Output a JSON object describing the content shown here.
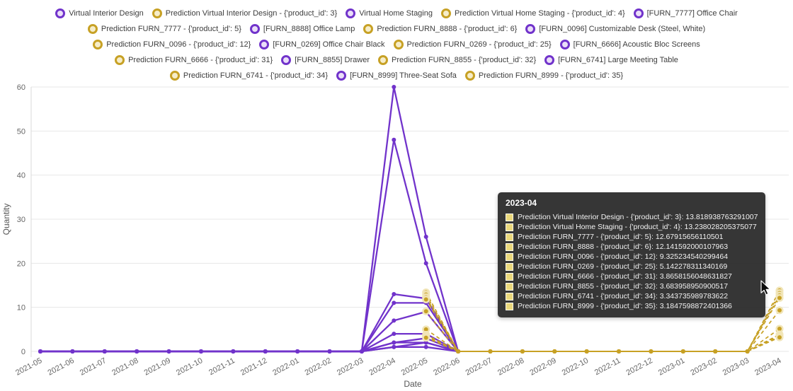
{
  "chart": {
    "ylabel": "Quantity",
    "xlabel": "Date",
    "y_ticks": [
      0,
      10,
      20,
      30,
      40,
      50,
      60
    ],
    "colors": {
      "actual": "#7133cb",
      "prediction": "#c7a125",
      "actual_fill": "#eadef8",
      "prediction_fill": "#f6edc9",
      "prediction_halo": "#f1e5b8",
      "grid": "#e7e7e7",
      "axis_line": "#d9d9d9",
      "axis_text": "#666666"
    }
  },
  "legend": {
    "row_counts": [
      5,
      4,
      4,
      4,
      3
    ]
  },
  "tooltip": {
    "title": "2023-04",
    "rows": [
      {
        "label": "Prediction Virtual Interior Design - {'product_id': 3}",
        "value": "13.818938763291007"
      },
      {
        "label": "Prediction Virtual Home Staging - {'product_id': 4}",
        "value": "13.238028205375077"
      },
      {
        "label": "Prediction FURN_7777 - {'product_id': 5}",
        "value": "12.67915656110501"
      },
      {
        "label": "Prediction FURN_8888 - {'product_id': 6}",
        "value": "12.141592000107963"
      },
      {
        "label": "Prediction FURN_0096 - {'product_id': 12}",
        "value": "9.325234540299464"
      },
      {
        "label": "Prediction FURN_0269 - {'product_id': 25}",
        "value": "5.142278311340169"
      },
      {
        "label": "Prediction FURN_6666 - {'product_id': 31}",
        "value": "3.8658156048631827"
      },
      {
        "label": "Prediction FURN_8855 - {'product_id': 32}",
        "value": "3.683958950900517"
      },
      {
        "label": "Prediction FURN_6741 - {'product_id': 34}",
        "value": "3.343735989783622"
      },
      {
        "label": "Prediction FURN_8999 - {'product_id': 35}",
        "value": "3.1847598872401366"
      }
    ]
  },
  "chart_data": {
    "type": "line",
    "title": "",
    "xlabel": "Date",
    "ylabel": "Quantity",
    "ylim": [
      0,
      60
    ],
    "x": [
      "2021-05",
      "2021-06",
      "2021-07",
      "2021-08",
      "2021-09",
      "2021-10",
      "2021-11",
      "2021-12",
      "2022-01",
      "2022-02",
      "2022-03",
      "2022-04",
      "2022-05",
      "2022-06",
      "2022-07",
      "2022-08",
      "2022-09",
      "2022-10",
      "2022-11",
      "2022-12",
      "2023-01",
      "2023-02",
      "2023-03",
      "2023-04"
    ],
    "series": [
      {
        "name": "Virtual Interior Design",
        "kind": "actual",
        "values": [
          0,
          0,
          0,
          0,
          0,
          0,
          0,
          0,
          0,
          0,
          0,
          60,
          26,
          0,
          null,
          null,
          null,
          null,
          null,
          null,
          null,
          null,
          null,
          null
        ]
      },
      {
        "name": "Prediction Virtual Interior Design - {'product_id': 3}",
        "kind": "prediction",
        "values": [
          null,
          null,
          null,
          null,
          null,
          null,
          null,
          null,
          null,
          null,
          null,
          null,
          13.4,
          0,
          0,
          0,
          0,
          0,
          0,
          0,
          0,
          0,
          0,
          13.818938763291007
        ]
      },
      {
        "name": "Virtual Home Staging",
        "kind": "actual",
        "values": [
          0,
          0,
          0,
          0,
          0,
          0,
          0,
          0,
          0,
          0,
          0,
          48,
          20,
          0,
          null,
          null,
          null,
          null,
          null,
          null,
          null,
          null,
          null,
          null
        ]
      },
      {
        "name": "Prediction Virtual Home Staging - {'product_id': 4}",
        "kind": "prediction",
        "values": [
          null,
          null,
          null,
          null,
          null,
          null,
          null,
          null,
          null,
          null,
          null,
          null,
          12.9,
          0,
          0,
          0,
          0,
          0,
          0,
          0,
          0,
          0,
          0,
          13.238028205375077
        ]
      },
      {
        "name": "[FURN_7777] Office Chair",
        "kind": "actual",
        "values": [
          0,
          0,
          0,
          0,
          0,
          0,
          0,
          0,
          0,
          0,
          0,
          13,
          12,
          0,
          null,
          null,
          null,
          null,
          null,
          null,
          null,
          null,
          null,
          null
        ]
      },
      {
        "name": "Prediction FURN_7777 - {'product_id': 5}",
        "kind": "prediction",
        "values": [
          null,
          null,
          null,
          null,
          null,
          null,
          null,
          null,
          null,
          null,
          null,
          null,
          12.3,
          0,
          0,
          0,
          0,
          0,
          0,
          0,
          0,
          0,
          0,
          12.67915656110501
        ]
      },
      {
        "name": "[FURN_8888] Office Lamp",
        "kind": "actual",
        "values": [
          0,
          0,
          0,
          0,
          0,
          0,
          0,
          0,
          0,
          0,
          0,
          11,
          11,
          0,
          null,
          null,
          null,
          null,
          null,
          null,
          null,
          null,
          null,
          null
        ]
      },
      {
        "name": "Prediction FURN_8888 - {'product_id': 6}",
        "kind": "prediction",
        "values": [
          null,
          null,
          null,
          null,
          null,
          null,
          null,
          null,
          null,
          null,
          null,
          null,
          11.8,
          0,
          0,
          0,
          0,
          0,
          0,
          0,
          0,
          0,
          0,
          12.141592000107963
        ]
      },
      {
        "name": "[FURN_0096] Customizable Desk (Steel, White)",
        "kind": "actual",
        "values": [
          0,
          0,
          0,
          0,
          0,
          0,
          0,
          0,
          0,
          0,
          0,
          7,
          9,
          0,
          null,
          null,
          null,
          null,
          null,
          null,
          null,
          null,
          null,
          null
        ]
      },
      {
        "name": "Prediction FURN_0096 - {'product_id': 12}",
        "kind": "prediction",
        "values": [
          null,
          null,
          null,
          null,
          null,
          null,
          null,
          null,
          null,
          null,
          null,
          null,
          9.1,
          0,
          0,
          0,
          0,
          0,
          0,
          0,
          0,
          0,
          0,
          9.325234540299464
        ]
      },
      {
        "name": "[FURN_0269] Office Chair Black",
        "kind": "actual",
        "values": [
          0,
          0,
          0,
          0,
          0,
          0,
          0,
          0,
          0,
          0,
          0,
          4,
          4,
          0,
          null,
          null,
          null,
          null,
          null,
          null,
          null,
          null,
          null,
          null
        ]
      },
      {
        "name": "Prediction FURN_0269 - {'product_id': 25}",
        "kind": "prediction",
        "values": [
          null,
          null,
          null,
          null,
          null,
          null,
          null,
          null,
          null,
          null,
          null,
          null,
          5.0,
          0,
          0,
          0,
          0,
          0,
          0,
          0,
          0,
          0,
          0,
          5.142278311340169
        ]
      },
      {
        "name": "[FURN_6666] Acoustic Bloc Screens",
        "kind": "actual",
        "values": [
          0,
          0,
          0,
          0,
          0,
          0,
          0,
          0,
          0,
          0,
          0,
          2,
          3,
          0,
          null,
          null,
          null,
          null,
          null,
          null,
          null,
          null,
          null,
          null
        ]
      },
      {
        "name": "Prediction FURN_6666 - {'product_id': 31}",
        "kind": "prediction",
        "values": [
          null,
          null,
          null,
          null,
          null,
          null,
          null,
          null,
          null,
          null,
          null,
          null,
          3.8,
          0,
          0,
          0,
          0,
          0,
          0,
          0,
          0,
          0,
          0,
          3.8658156048631827
        ]
      },
      {
        "name": "[FURN_8855] Drawer",
        "kind": "actual",
        "values": [
          0,
          0,
          0,
          0,
          0,
          0,
          0,
          0,
          0,
          0,
          0,
          2,
          2,
          0,
          null,
          null,
          null,
          null,
          null,
          null,
          null,
          null,
          null,
          null
        ]
      },
      {
        "name": "Prediction FURN_8855 - {'product_id': 32}",
        "kind": "prediction",
        "values": [
          null,
          null,
          null,
          null,
          null,
          null,
          null,
          null,
          null,
          null,
          null,
          null,
          3.6,
          0,
          0,
          0,
          0,
          0,
          0,
          0,
          0,
          0,
          0,
          3.683958950900517
        ]
      },
      {
        "name": "[FURN_6741] Large Meeting Table",
        "kind": "actual",
        "values": [
          0,
          0,
          0,
          0,
          0,
          0,
          0,
          0,
          0,
          0,
          0,
          1,
          2,
          0,
          null,
          null,
          null,
          null,
          null,
          null,
          null,
          null,
          null,
          null
        ]
      },
      {
        "name": "Prediction FURN_6741 - {'product_id': 34}",
        "kind": "prediction",
        "values": [
          null,
          null,
          null,
          null,
          null,
          null,
          null,
          null,
          null,
          null,
          null,
          null,
          3.3,
          0,
          0,
          0,
          0,
          0,
          0,
          0,
          0,
          0,
          0,
          3.343735989783622
        ]
      },
      {
        "name": "[FURN_8999] Three-Seat Sofa",
        "kind": "actual",
        "values": [
          0,
          0,
          0,
          0,
          0,
          0,
          0,
          0,
          0,
          0,
          0,
          1,
          1,
          0,
          null,
          null,
          null,
          null,
          null,
          null,
          null,
          null,
          null,
          null
        ]
      },
      {
        "name": "Prediction FURN_8999 - {'product_id': 35}",
        "kind": "prediction",
        "values": [
          null,
          null,
          null,
          null,
          null,
          null,
          null,
          null,
          null,
          null,
          null,
          null,
          3.1,
          0,
          0,
          0,
          0,
          0,
          0,
          0,
          0,
          0,
          0,
          3.1847598872401366
        ]
      }
    ],
    "legend_position": "top",
    "grid": "horizontal"
  }
}
